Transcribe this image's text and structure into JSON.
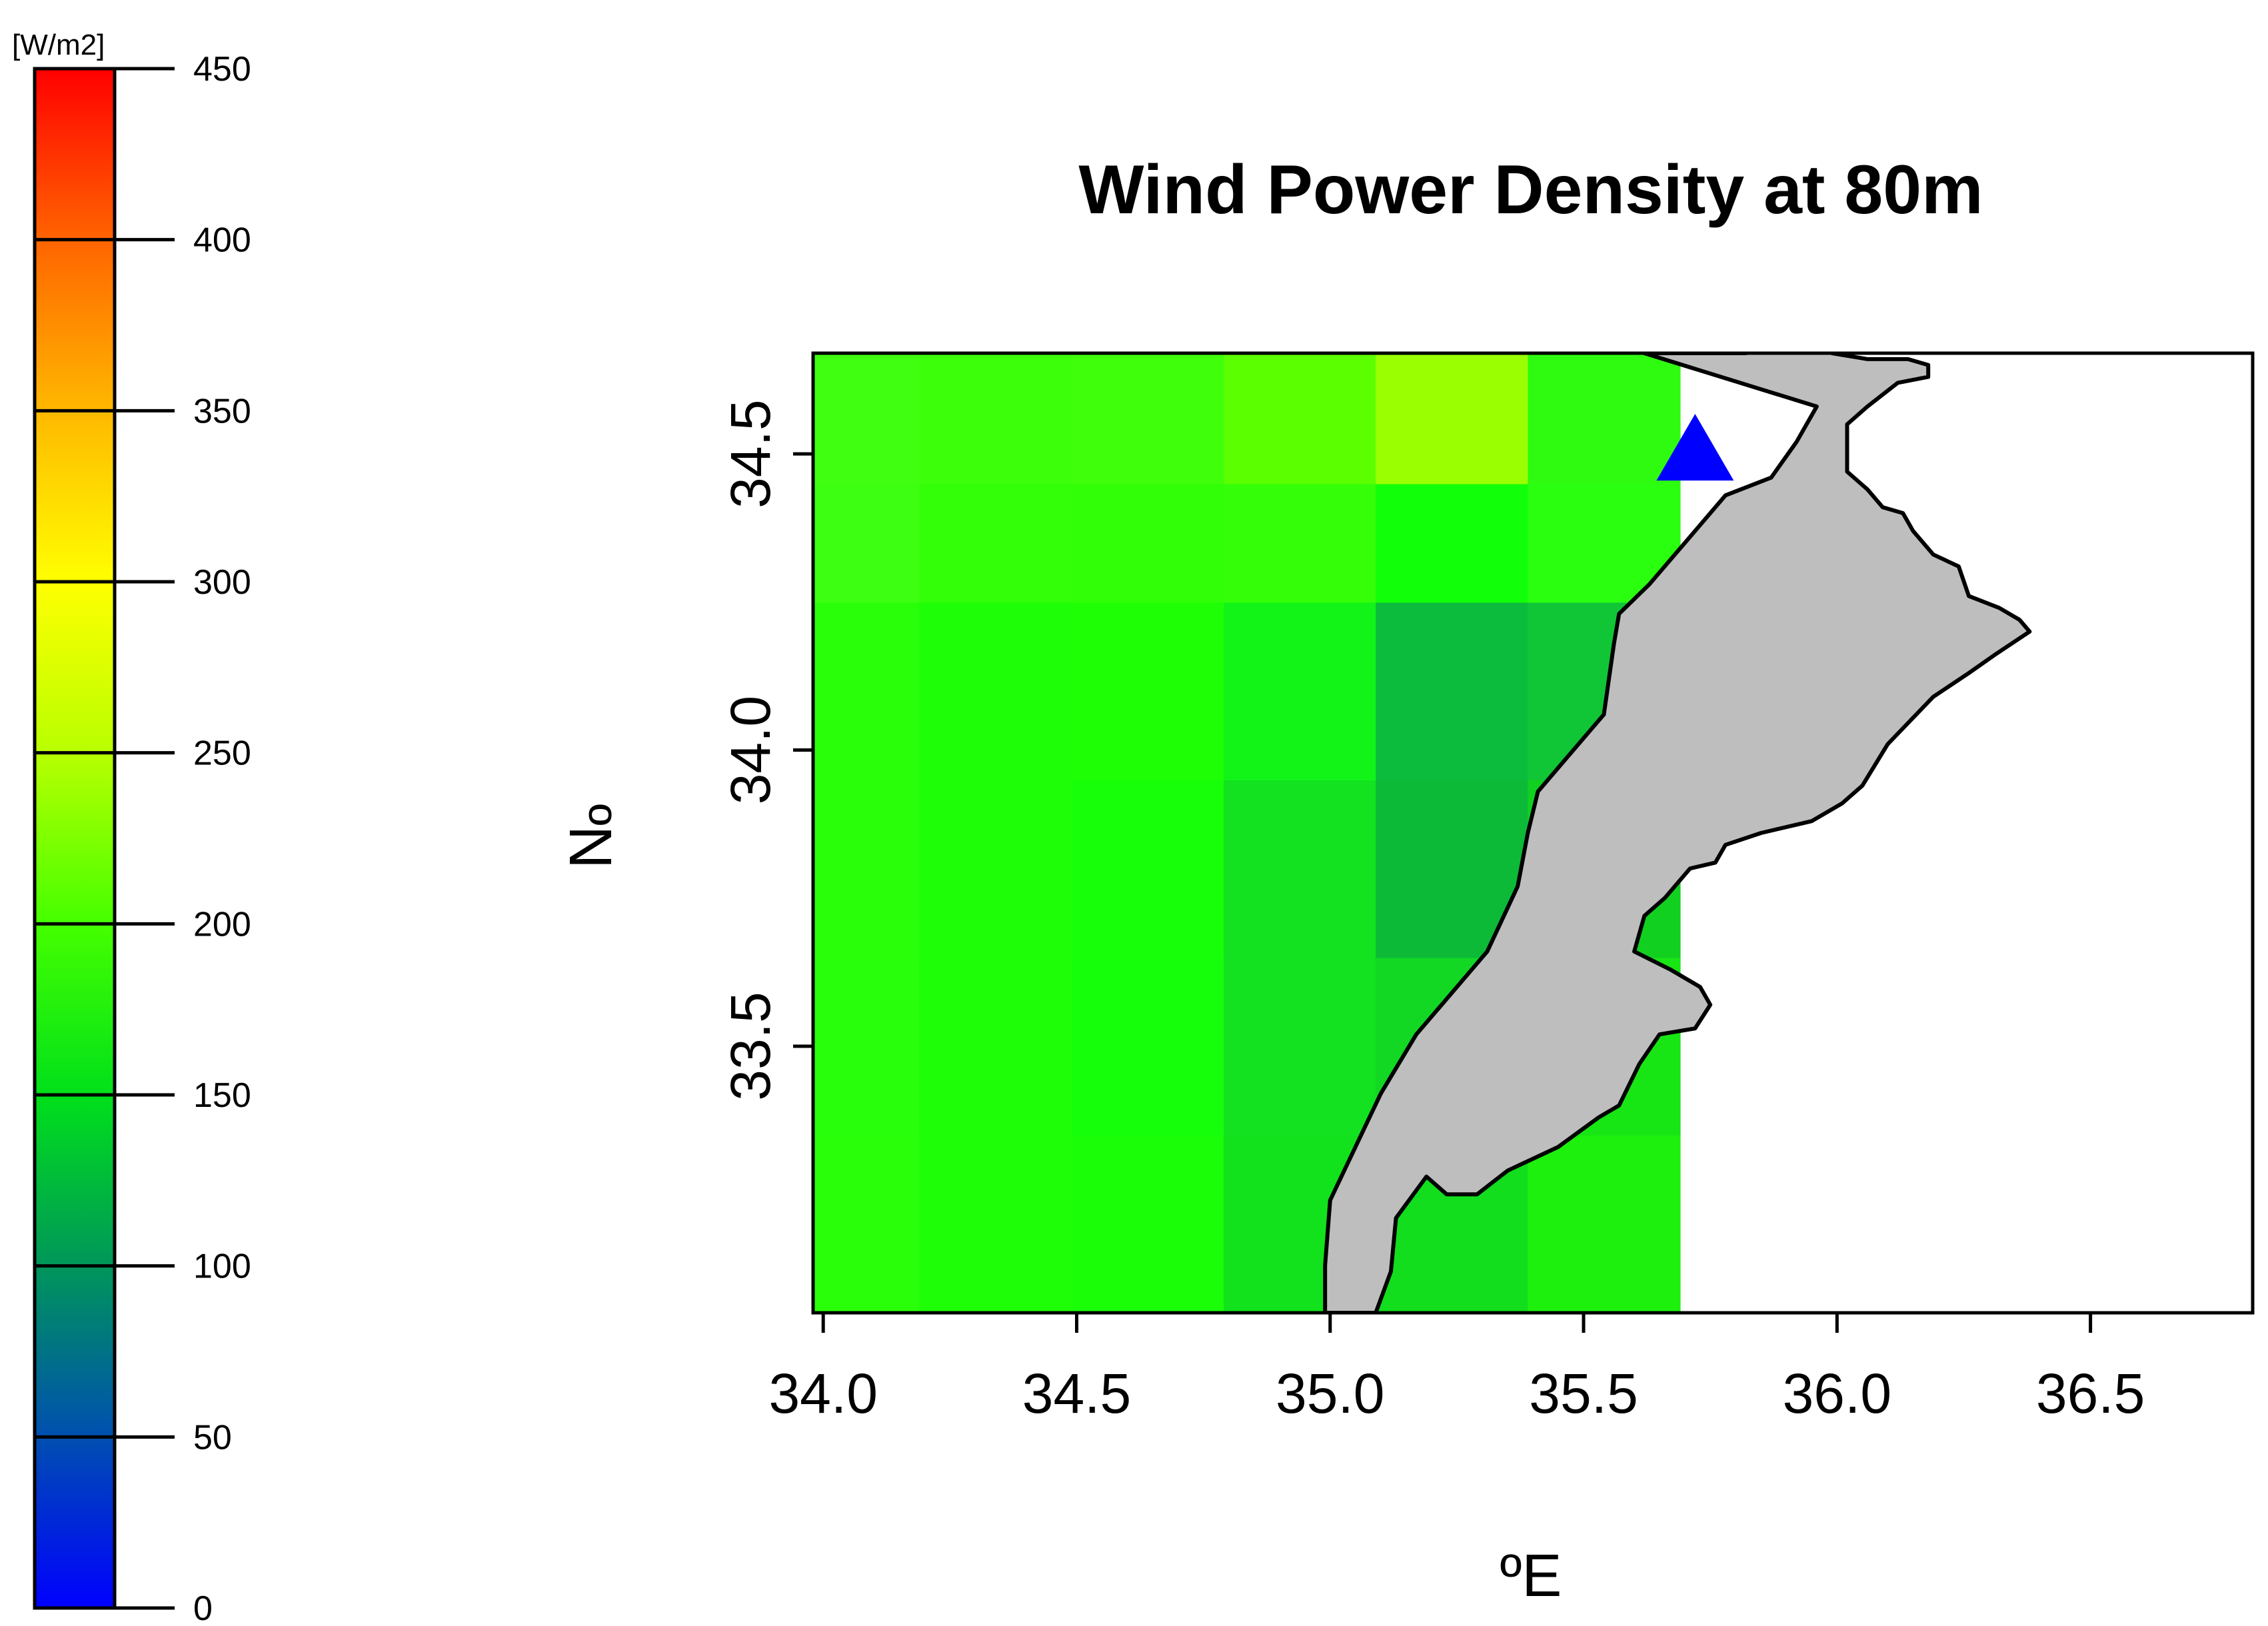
{
  "chart_data": {
    "type": "heatmap",
    "title": "Wind Power Density at 80m",
    "xlabel": "ºE",
    "ylabel": "ºN",
    "xlim": [
      33.98,
      36.82
    ],
    "ylim": [
      33.05,
      34.67
    ],
    "xticks": [
      34.0,
      34.5,
      35.0,
      35.5,
      36.0,
      36.5
    ],
    "xtick_labels": [
      "34.0",
      "34.5",
      "35.0",
      "35.5",
      "36.0",
      "36.5"
    ],
    "yticks": [
      33.5,
      34.0,
      34.5
    ],
    "ytick_labels": [
      "33.5",
      "34.0",
      "34.5"
    ],
    "colorbar": {
      "unit_label": "[W/m2]",
      "min": 0,
      "max": 450,
      "tick_values": [
        0,
        50,
        100,
        150,
        200,
        250,
        300,
        350,
        400,
        450
      ],
      "tick_labels": [
        "0",
        "50",
        "100",
        "150",
        "200",
        "250",
        "300",
        "350",
        "400",
        "450"
      ],
      "stops": [
        {
          "value": 0,
          "color": "#0000ff"
        },
        {
          "value": 50,
          "color": "#004fb0"
        },
        {
          "value": 100,
          "color": "#00965a"
        },
        {
          "value": 150,
          "color": "#00e01a"
        },
        {
          "value": 200,
          "color": "#45ff00"
        },
        {
          "value": 250,
          "color": "#b8ff00"
        },
        {
          "value": 300,
          "color": "#ffff00"
        },
        {
          "value": 350,
          "color": "#ffb800"
        },
        {
          "value": 400,
          "color": "#ff6400"
        },
        {
          "value": 450,
          "color": "#ff0000"
        }
      ]
    },
    "grid": {
      "x_edges": [
        33.98,
        34.19,
        34.49,
        34.79,
        35.09,
        35.39,
        35.69
      ],
      "y_edges": [
        33.05,
        33.35,
        33.65,
        33.95,
        34.25,
        34.45,
        34.67
      ],
      "colors": [
        [
          "#2aff0a",
          "#1efe06",
          "#1aff08",
          "#12e21c",
          "#12de1e",
          "#1ef00e"
        ],
        [
          "#28ff0a",
          "#1efe06",
          "#16ff0a",
          "#12e220",
          "#12d824",
          "#18e614"
        ],
        [
          "#2aff0a",
          "#1efe06",
          "#18ff0a",
          "#12e220",
          "#0cba38",
          "#12d020"
        ],
        [
          "#2aff0a",
          "#1efe06",
          "#1eff06",
          "#12f418",
          "#0cbc3c",
          "#10c636"
        ],
        [
          "#3cff12",
          "#32ff08",
          "#30ff08",
          "#34ff08",
          "#12ff0a",
          "#2aff10"
        ],
        [
          "#40ff10",
          "#3cff0a",
          "#40ff0a",
          "#5cff00",
          "#9aff00",
          "#2efb10"
        ]
      ]
    },
    "land_polygon": [
      [
        35.62,
        34.67
      ],
      [
        35.74,
        34.67
      ],
      [
        35.82,
        34.67
      ],
      [
        35.9,
        34.69
      ],
      [
        35.99,
        34.67
      ],
      [
        36.06,
        34.66
      ],
      [
        36.14,
        34.66
      ],
      [
        36.18,
        34.65
      ],
      [
        36.18,
        34.63
      ],
      [
        36.12,
        34.62
      ],
      [
        36.06,
        34.58
      ],
      [
        36.02,
        34.55
      ],
      [
        36.02,
        34.47
      ],
      [
        36.06,
        34.44
      ],
      [
        36.09,
        34.41
      ],
      [
        36.13,
        34.4
      ],
      [
        36.15,
        34.37
      ],
      [
        36.19,
        34.33
      ],
      [
        36.24,
        34.31
      ],
      [
        36.26,
        34.26
      ],
      [
        36.32,
        34.24
      ],
      [
        36.36,
        34.22
      ],
      [
        36.38,
        34.2
      ],
      [
        36.31,
        34.16
      ],
      [
        36.26,
        34.13
      ],
      [
        36.19,
        34.09
      ],
      [
        36.1,
        34.01
      ],
      [
        36.05,
        33.94
      ],
      [
        36.01,
        33.91
      ],
      [
        35.95,
        33.88
      ],
      [
        35.85,
        33.86
      ],
      [
        35.78,
        33.84
      ],
      [
        35.76,
        33.81
      ],
      [
        35.71,
        33.8
      ],
      [
        35.66,
        33.75
      ],
      [
        35.62,
        33.72
      ],
      [
        35.6,
        33.66
      ],
      [
        35.67,
        33.63
      ],
      [
        35.73,
        33.6
      ],
      [
        35.75,
        33.57
      ],
      [
        35.72,
        33.53
      ],
      [
        35.65,
        33.52
      ],
      [
        35.61,
        33.47
      ],
      [
        35.57,
        33.4
      ],
      [
        35.53,
        33.38
      ],
      [
        35.45,
        33.33
      ],
      [
        35.35,
        33.29
      ],
      [
        35.29,
        33.25
      ],
      [
        35.23,
        33.25
      ],
      [
        35.19,
        33.28
      ],
      [
        35.13,
        33.21
      ],
      [
        35.12,
        33.12
      ],
      [
        35.09,
        33.05
      ],
      [
        34.99,
        33.05
      ],
      [
        34.99,
        33.13
      ],
      [
        35.0,
        33.24
      ],
      [
        35.05,
        33.33
      ],
      [
        35.1,
        33.42
      ],
      [
        35.17,
        33.52
      ],
      [
        35.23,
        33.58
      ],
      [
        35.31,
        33.66
      ],
      [
        35.37,
        33.77
      ],
      [
        35.39,
        33.86
      ],
      [
        35.41,
        33.93
      ],
      [
        35.47,
        33.99
      ],
      [
        35.54,
        34.06
      ],
      [
        35.56,
        34.18
      ],
      [
        35.57,
        34.23
      ],
      [
        35.63,
        34.28
      ],
      [
        35.67,
        34.32
      ],
      [
        35.72,
        34.37
      ],
      [
        35.78,
        34.43
      ],
      [
        35.87,
        34.46
      ],
      [
        35.92,
        34.52
      ],
      [
        35.96,
        34.58
      ]
    ],
    "site_marker": {
      "lon": 35.72,
      "lat": 34.5,
      "shape": "triangle",
      "color": "#0000ff"
    }
  },
  "colors": {
    "land": "#bebebe",
    "sea_outside": "#ffffff",
    "axis": "#000000"
  }
}
